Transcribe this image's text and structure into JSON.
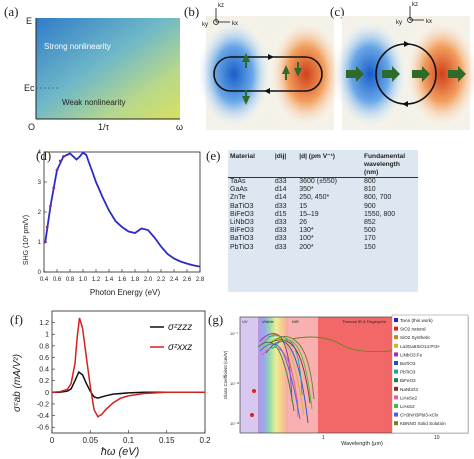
{
  "panel_a": {
    "label": "(a)",
    "y_axis_top": "E",
    "y_axis_mid": "Ec",
    "x_origin": "O",
    "x_mid": "1/τ",
    "x_end": "ω",
    "region_strong": "Strong nonlinearity",
    "region_weak": "Weak nonlinearity"
  },
  "panel_b": {
    "label": "(b)",
    "axis_kz": "kz",
    "axis_ky": "ky",
    "axis_kx": "kx"
  },
  "panel_c": {
    "label": "(c)",
    "axis_kz": "kz",
    "axis_ky": "ky",
    "axis_kx": "kx"
  },
  "panel_d": {
    "label": "(d)",
    "ylabel": "SHG (10³ pm/V)",
    "xlabel": "Photon Energy (eV)",
    "chart_data": {
      "type": "line",
      "xlim": [
        0.4,
        2.8
      ],
      "ylim": [
        0,
        4
      ],
      "xticks": [
        "0.4",
        "0.6",
        "0.8",
        "1.0",
        "1.2",
        "1.4",
        "1.6",
        "1.8",
        "2.0",
        "2.2",
        "2.4",
        "2.6",
        "2.8"
      ],
      "yticks": [
        "0",
        "1",
        "2",
        "3",
        "4"
      ],
      "series": [
        {
          "color": "#2a2acc",
          "x": [
            0.42,
            0.5,
            0.6,
            0.7,
            0.8,
            0.9,
            0.95,
            1.0,
            1.05,
            1.1,
            1.15,
            1.2,
            1.3,
            1.4,
            1.5,
            1.6,
            1.7,
            1.8,
            1.9,
            2.0,
            2.1,
            2.2,
            2.3,
            2.4,
            2.5,
            2.6,
            2.7,
            2.8
          ],
          "y": [
            1.0,
            2.2,
            3.4,
            3.85,
            3.95,
            3.75,
            3.85,
            3.98,
            3.9,
            3.6,
            3.3,
            3.0,
            2.5,
            2.05,
            1.7,
            1.5,
            1.35,
            1.3,
            1.45,
            1.4,
            1.15,
            0.85,
            0.6,
            0.45,
            0.35,
            0.28,
            0.22,
            0.18
          ]
        },
        {
          "color": "#8a2a8a",
          "marker": "dot",
          "x": [
            0.42,
            0.45,
            0.5,
            0.55,
            0.6,
            0.65,
            0.7
          ],
          "y": [
            1.0,
            1.5,
            2.2,
            2.8,
            3.4,
            3.7,
            3.85
          ]
        }
      ]
    }
  },
  "panel_e": {
    "label": "(e)",
    "headers": [
      "Material",
      "|dij|",
      "|d| (pm V⁻¹)",
      "Fundamental wavelength (nm)"
    ],
    "rows": [
      [
        "TaAs",
        "d33",
        "3600 (±550)",
        "800"
      ],
      [
        "GaAs",
        "d14",
        "350*",
        "810"
      ],
      [
        "ZnTe",
        "d14",
        "250, 450*",
        "800, 700"
      ],
      [
        "BaTiO3",
        "d33",
        "15",
        "900"
      ],
      [
        "BiFeO3",
        "d15",
        "15–19",
        "1550, 800"
      ],
      [
        "LiNbO3",
        "d33",
        "26",
        "852"
      ],
      [
        "BiFeO3",
        "d33",
        "130*",
        "500"
      ],
      [
        "BaTiO3",
        "d33",
        "100*",
        "170"
      ],
      [
        "PbTiO3",
        "d33",
        "200*",
        "150"
      ]
    ]
  },
  "panel_f": {
    "label": "(f)",
    "ylabel": "σᶜab (mA/V²)",
    "xlabel": "ħω (eV)",
    "legend": [
      "σᶻzzz",
      "σᶻxxz"
    ],
    "chart_data": {
      "type": "line",
      "xlim": [
        0,
        0.2
      ],
      "ylim": [
        -0.7,
        1.4
      ],
      "xticks": [
        "0",
        "0.05",
        "0.1",
        "0.15",
        "0.2"
      ],
      "yticks": [
        "-0.6",
        "-0.4",
        "-0.2",
        "0",
        "0.2",
        "0.4",
        "0.6",
        "0.8",
        "1",
        "1.2"
      ],
      "series": [
        {
          "name": "σᶻzzz",
          "color": "#111111",
          "x": [
            0,
            0.01,
            0.02,
            0.025,
            0.03,
            0.035,
            0.04,
            0.045,
            0.05,
            0.055,
            0.06,
            0.07,
            0.08,
            0.1,
            0.12,
            0.15,
            0.2
          ],
          "y": [
            0,
            0,
            0.02,
            0.06,
            0.2,
            0.35,
            0.3,
            0.15,
            0.02,
            -0.08,
            -0.1,
            -0.06,
            -0.03,
            -0.01,
            0,
            0,
            0
          ]
        },
        {
          "name": "σᶻxxz",
          "color": "#d42020",
          "x": [
            0,
            0.01,
            0.02,
            0.025,
            0.03,
            0.033,
            0.036,
            0.04,
            0.045,
            0.05,
            0.055,
            0.06,
            0.065,
            0.07,
            0.08,
            0.09,
            0.1,
            0.12,
            0.15,
            0.2
          ],
          "y": [
            0,
            0.01,
            0.05,
            0.15,
            0.5,
            0.95,
            1.28,
            1.1,
            0.6,
            0.1,
            -0.3,
            -0.42,
            -0.38,
            -0.3,
            -0.18,
            -0.1,
            -0.06,
            -0.02,
            0,
            0
          ]
        }
      ]
    }
  },
  "panel_g": {
    "label": "(g)",
    "ylabel": "Glass Coefficient (cm/V)",
    "xlabel": "Wavelength (μm)",
    "band_labels": [
      "UV",
      "Visible",
      "NIR",
      "Thermal IR & Fingerprint"
    ],
    "legend": [
      {
        "text": "TaAs (this work)",
        "color": "#2222dd"
      },
      {
        "text": "SiO2 natural",
        "color": "#dd2222"
      },
      {
        "text": "SiO2 Synthetic",
        "color": "#d08020"
      },
      {
        "text": "La3Ga5SiO14:Pr3+",
        "color": "#c0c020"
      },
      {
        "text": "LiNbO3:Fe",
        "color": "#9a30c0"
      },
      {
        "text": "BaTiO3",
        "color": "#2050c0"
      },
      {
        "text": "PbTiO3",
        "color": "#20a0a0"
      },
      {
        "text": "BiFeO3",
        "color": "#208040"
      },
      {
        "text": "NaNbO3",
        "color": "#803020"
      },
      {
        "text": "LiAsSe2",
        "color": "#e060a0"
      },
      {
        "text": "LiAsS2",
        "color": "#40c040"
      },
      {
        "text": "CH3NH3PbI3-xClx",
        "color": "#5060e0"
      },
      {
        "text": "KBNNO Solid Solution",
        "color": "#708020"
      }
    ]
  }
}
